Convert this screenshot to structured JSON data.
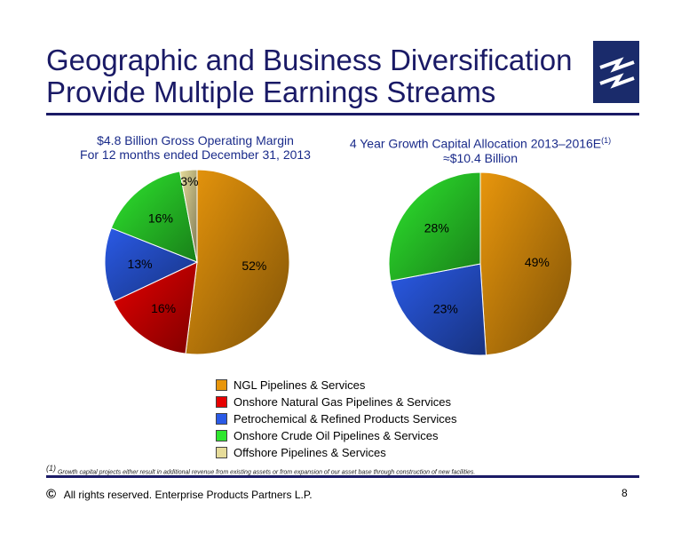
{
  "slide": {
    "title_line1": "Geographic and Business Diversification",
    "title_line2": "Provide Multiple Earnings Streams",
    "footnote_marker": "(1)",
    "footnote": "Growth capital projects either result in additional revenue from existing assets or from expansion of our asset base through construction of new facilities.",
    "copyright_symbol": "©",
    "footer": "All rights reserved. Enterprise Products Partners L.P.",
    "page_number": "8"
  },
  "colors": {
    "title": "#1a1a66",
    "subtitle": "#1a2b8a",
    "ngl": "#e8960c",
    "onshore_gas": "#e60000",
    "petrochemical": "#2a5ae6",
    "crude_oil": "#2ee62e",
    "offshore": "#e6dc9a"
  },
  "legend": [
    {
      "label": "NGL Pipelines & Services",
      "color": "#e8960c"
    },
    {
      "label": "Onshore Natural Gas Pipelines & Services",
      "color": "#e60000"
    },
    {
      "label": "Petrochemical & Refined Products Services",
      "color": "#2a5ae6"
    },
    {
      "label": "Onshore Crude Oil Pipelines & Services",
      "color": "#2ee62e"
    },
    {
      "label": "Offshore Pipelines & Services",
      "color": "#e6dc9a"
    }
  ],
  "chart_data": [
    {
      "type": "pie",
      "title": "$4.8 Billion Gross Operating Margin",
      "subtitle": "For 12 months ended December 31, 2013",
      "categories": [
        "NGL Pipelines & Services",
        "Onshore Natural Gas Pipelines & Services",
        "Petrochemical & Refined Products Services",
        "Onshore Crude Oil Pipelines & Services",
        "Offshore Pipelines & Services"
      ],
      "values": [
        52,
        16,
        13,
        16,
        3
      ],
      "labels": [
        "52%",
        "16%",
        "13%",
        "16%",
        "3%"
      ]
    },
    {
      "type": "pie",
      "title": "4 Year Growth Capital Allocation 2013–2016E",
      "title_note": "(1)",
      "subtitle": "≈$10.4 Billion",
      "categories": [
        "NGL Pipelines & Services",
        "Petrochemical & Refined Products Services",
        "Onshore Crude Oil Pipelines & Services"
      ],
      "values": [
        49,
        23,
        28
      ],
      "labels": [
        "49%",
        "23%",
        "28%"
      ]
    }
  ]
}
